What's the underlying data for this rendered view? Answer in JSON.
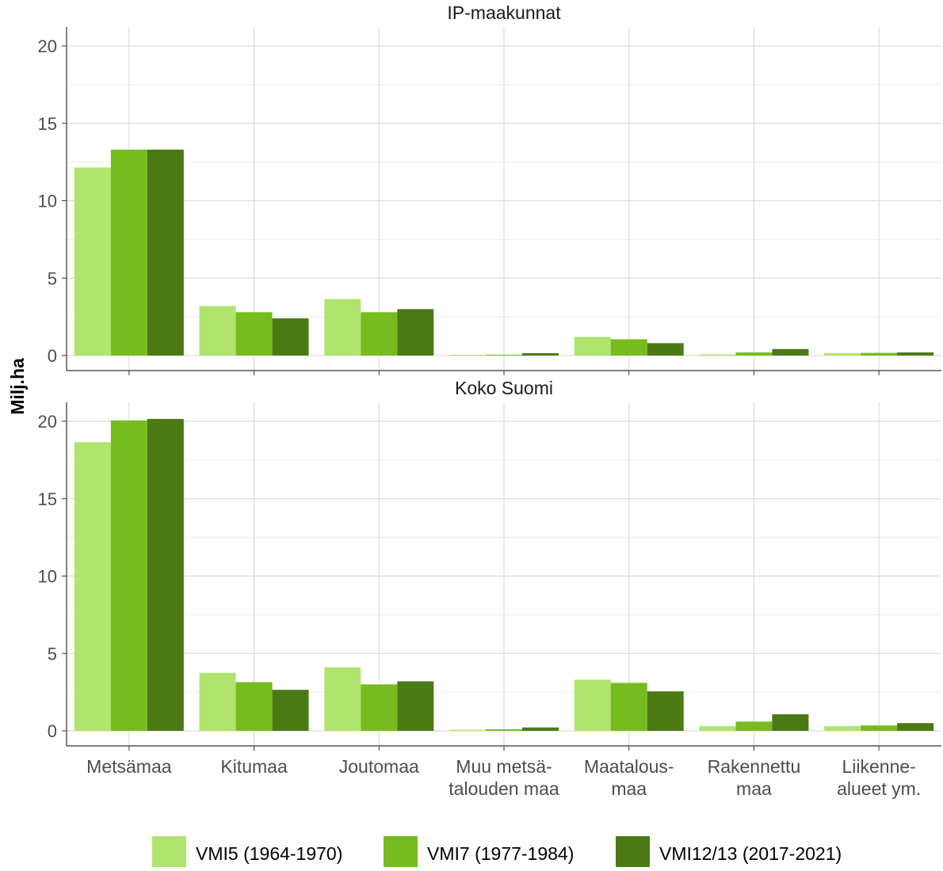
{
  "chart_data": {
    "type": "bar",
    "ylabel": "Milj.ha",
    "xlabel": "",
    "ylim": [
      0,
      20
    ],
    "yticks": [
      0,
      5,
      10,
      15,
      20
    ],
    "grid": true,
    "legend_position": "bottom",
    "categories": [
      [
        "Metsämaa"
      ],
      [
        "Kitumaa"
      ],
      [
        "Joutomaa"
      ],
      [
        "Muu metsä-",
        "talouden maa"
      ],
      [
        "Maatalous-",
        "maa"
      ],
      [
        "Rakennettu",
        "maa"
      ],
      [
        "Liikenne-",
        "alueet ym."
      ]
    ],
    "series": [
      {
        "name": "VMI5 (1964-1970)",
        "color": "#b0e46e"
      },
      {
        "name": "VMI7 (1977-1984)",
        "color": "#77bc1f"
      },
      {
        "name": "VMI12/13 (2017-2021)",
        "color": "#4b7a15"
      }
    ],
    "panels": [
      {
        "title": "IP-maakunnat",
        "values": [
          [
            12.15,
            3.2,
            3.65,
            0.05,
            1.2,
            0.07,
            0.15
          ],
          [
            13.3,
            2.8,
            2.8,
            0.05,
            1.05,
            0.2,
            0.17
          ],
          [
            13.3,
            2.4,
            3.0,
            0.15,
            0.8,
            0.42,
            0.2
          ]
        ]
      },
      {
        "title": "Koko Suomi",
        "values": [
          [
            18.65,
            3.75,
            4.1,
            0.07,
            3.3,
            0.3,
            0.3
          ],
          [
            20.05,
            3.15,
            3.0,
            0.1,
            3.1,
            0.6,
            0.35
          ],
          [
            20.15,
            2.65,
            3.2,
            0.22,
            2.55,
            1.07,
            0.5
          ]
        ]
      }
    ]
  }
}
